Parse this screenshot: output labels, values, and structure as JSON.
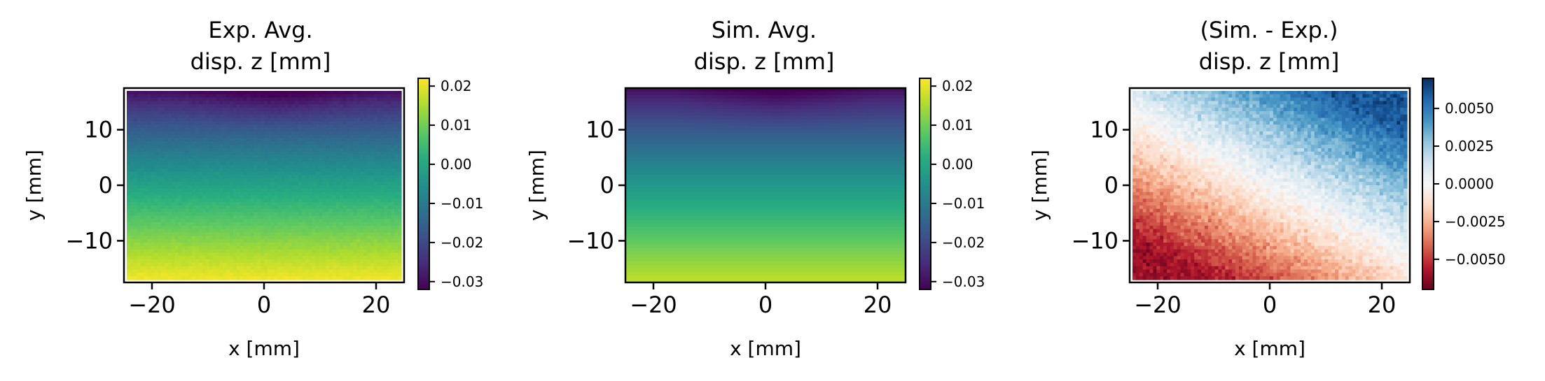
{
  "chart_data": [
    {
      "type": "heatmap",
      "title": "Exp. Avg.",
      "subtitle": "disp. z [mm]",
      "xlabel": "x [mm]",
      "ylabel": "y [mm]",
      "xlim": [
        -25,
        25
      ],
      "ylim": [
        -17.5,
        17.5
      ],
      "data_extent": {
        "x": [
          -24.5,
          24.5
        ],
        "y": [
          -17,
          17
        ]
      },
      "x_ticks": [
        -20,
        0,
        20
      ],
      "x_tick_labels": [
        "−20",
        "0",
        "20"
      ],
      "y_ticks": [
        10,
        0,
        -10
      ],
      "y_tick_labels": [
        "10",
        "0",
        "−10"
      ],
      "colormap": "viridis",
      "colorbar": {
        "range": [
          -0.032,
          0.022
        ],
        "ticks": [
          0.02,
          0.01,
          0.0,
          -0.01,
          -0.02,
          -0.03
        ],
        "tick_labels": [
          "0.02",
          "0.01",
          "0.00",
          "−0.01",
          "−0.02",
          "−0.03"
        ]
      },
      "field": {
        "description": "vertical gradient: low at top (y=17, min near x≈2), high at bottom",
        "top": -0.031,
        "bottom": 0.021,
        "noise": 0.0012
      }
    },
    {
      "type": "heatmap",
      "title": "Sim. Avg.",
      "subtitle": "disp. z [mm]",
      "xlabel": "x [mm]",
      "ylabel": "y [mm]",
      "xlim": [
        -25,
        25
      ],
      "ylim": [
        -17.5,
        17.5
      ],
      "data_extent": {
        "x": [
          -25,
          25
        ],
        "y": [
          -17.5,
          17.5
        ]
      },
      "x_ticks": [
        -20,
        0,
        20
      ],
      "x_tick_labels": [
        "−20",
        "0",
        "20"
      ],
      "y_ticks": [
        10,
        0,
        -10
      ],
      "y_tick_labels": [
        "10",
        "0",
        "−10"
      ],
      "colormap": "viridis",
      "colorbar": {
        "range": [
          -0.032,
          0.022
        ],
        "ticks": [
          0.02,
          0.01,
          0.0,
          -0.01,
          -0.02,
          -0.03
        ],
        "tick_labels": [
          "0.02",
          "0.01",
          "0.00",
          "−0.01",
          "−0.02",
          "−0.03"
        ]
      },
      "field": {
        "top": -0.031,
        "bottom": 0.017,
        "noise": 0
      }
    },
    {
      "type": "heatmap",
      "title": "(Sim. - Exp.)",
      "subtitle": "disp. z [mm]",
      "xlabel": "x [mm]",
      "ylabel": "y [mm]",
      "xlim": [
        -25,
        25
      ],
      "ylim": [
        -17.5,
        17.5
      ],
      "data_extent": {
        "x": [
          -24.5,
          24.5
        ],
        "y": [
          -17,
          17
        ]
      },
      "x_ticks": [
        -20,
        0,
        20
      ],
      "x_tick_labels": [
        "−20",
        "0",
        "20"
      ],
      "y_ticks": [
        10,
        0,
        -10
      ],
      "y_tick_labels": [
        "10",
        "0",
        "−10"
      ],
      "colormap": "RdBu",
      "colorbar": {
        "range": [
          -0.007,
          0.007
        ],
        "ticks": [
          0.005,
          0.0025,
          0.0,
          -0.0025,
          -0.005
        ],
        "tick_labels": [
          "0.0050",
          "0.0025",
          "0.0000",
          "−0.0025",
          "−0.0050"
        ]
      },
      "field": {
        "description": "diagonal gradient: negative (red) bottom-left, positive (blue) top-right",
        "min": -0.006,
        "max": 0.006,
        "noise": 0.0012
      }
    }
  ]
}
